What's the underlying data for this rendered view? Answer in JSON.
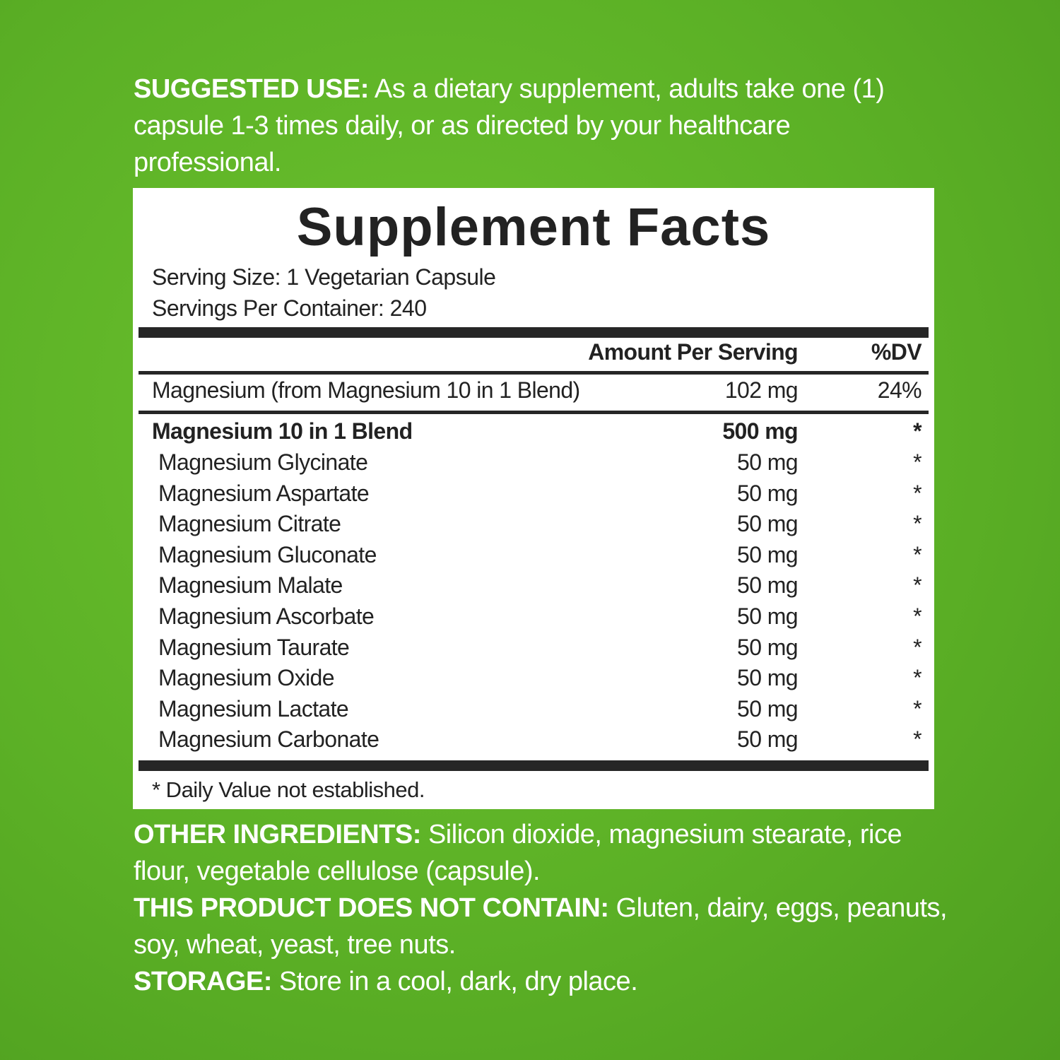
{
  "suggested_use": {
    "label": "SUGGESTED USE:",
    "text": " As a dietary supplement, adults take one (1) capsule 1-3 times daily, or as directed by your healthcare professional."
  },
  "facts": {
    "title": "Supplement Facts",
    "serving_size": "Serving Size: 1 Vegetarian Capsule",
    "servings_per_container": "Servings Per Container: 240",
    "header": {
      "amount": "Amount Per Serving",
      "dv": "%DV"
    },
    "main_row": {
      "name": "Magnesium (from Magnesium 10 in 1 Blend)",
      "amount": "102 mg",
      "dv": "24%"
    },
    "blend": {
      "name": "Magnesium 10 in 1 Blend",
      "amount": "500 mg",
      "dv": "*"
    },
    "items": [
      {
        "name": "Magnesium Glycinate",
        "amount": "50 mg",
        "dv": "*"
      },
      {
        "name": "Magnesium Aspartate",
        "amount": "50 mg",
        "dv": "*"
      },
      {
        "name": "Magnesium Citrate",
        "amount": "50 mg",
        "dv": "*"
      },
      {
        "name": "Magnesium Gluconate",
        "amount": "50 mg",
        "dv": "*"
      },
      {
        "name": "Magnesium Malate",
        "amount": "50 mg",
        "dv": "*"
      },
      {
        "name": "Magnesium Ascorbate",
        "amount": "50 mg",
        "dv": "*"
      },
      {
        "name": "Magnesium Taurate",
        "amount": "50 mg",
        "dv": "*"
      },
      {
        "name": "Magnesium Oxide",
        "amount": "50 mg",
        "dv": "*"
      },
      {
        "name": "Magnesium Lactate",
        "amount": "50 mg",
        "dv": "*"
      },
      {
        "name": "Magnesium Carbonate",
        "amount": "50 mg",
        "dv": "*"
      }
    ],
    "footnote": "* Daily Value not established."
  },
  "other_ingredients": {
    "label": "OTHER INGREDIENTS:",
    "text": " Silicon dioxide, magnesium stearate, rice flour, vegetable cellulose (capsule)."
  },
  "not_contain": {
    "label": "THIS PRODUCT DOES NOT CONTAIN:",
    "text": " Gluten, dairy, eggs, peanuts, soy, wheat, yeast, tree nuts."
  },
  "storage": {
    "label": "STORAGE:",
    "text": " Store in a cool, dark, dry place."
  },
  "colors": {
    "background": "#5cb126",
    "text_on_bg": "#ffffff",
    "panel": "#ffffff",
    "rules": "#262626"
  }
}
